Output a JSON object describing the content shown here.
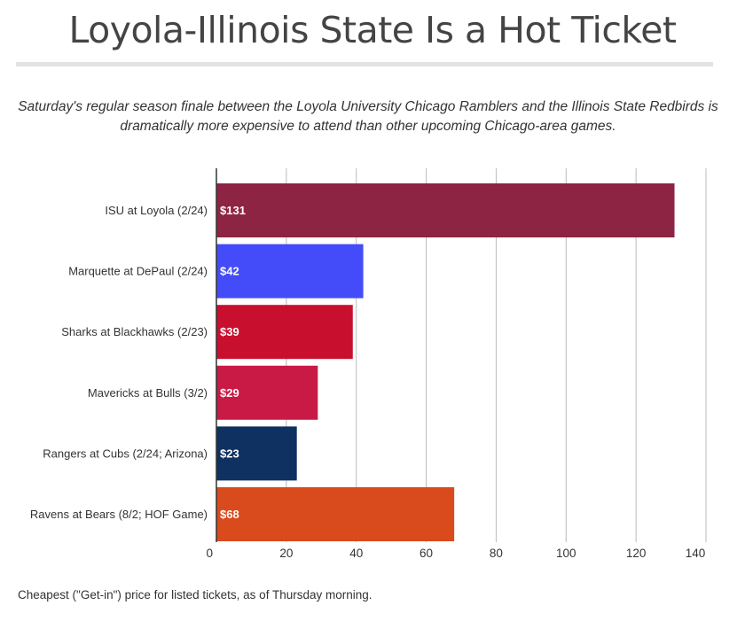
{
  "title": "Loyola-Illinois State Is a Hot Ticket",
  "subtitle": "Saturday's regular season finale between the Loyola University Chicago Ramblers and the Illinois State Redbirds is dramatically more expensive to attend than other upcoming Chicago-area games.",
  "footnote": "Cheapest (\"Get-in\") price for listed tickets, as of Thursday morning.",
  "chart_data": {
    "type": "bar",
    "orientation": "horizontal",
    "title": "Loyola-Illinois State Is a Hot Ticket",
    "xlabel": "",
    "ylabel": "",
    "xlim": [
      0,
      140
    ],
    "ticks": [
      0,
      20,
      40,
      60,
      80,
      100,
      120,
      140
    ],
    "grid": true,
    "categories": [
      "ISU at Loyola (2/24)",
      "Marquette at DePaul (2/24)",
      "Sharks at Blackhawks (2/23)",
      "Mavericks at Bulls (3/2)",
      "Rangers at Cubs (2/24; Arizona)",
      "Ravens at Bears (8/2; HOF Game)"
    ],
    "values": [
      131,
      42,
      39,
      29,
      23,
      68
    ],
    "value_labels": [
      "$131",
      "$42",
      "$39",
      "$29",
      "$23",
      "$68"
    ],
    "colors": [
      "#8e2444",
      "#434cf8",
      "#c8102e",
      "#c81a45",
      "#0e3161",
      "#d94a1c"
    ]
  }
}
